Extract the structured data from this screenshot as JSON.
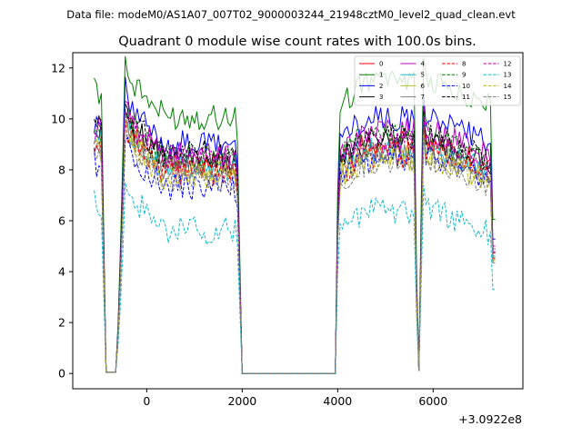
{
  "chart_data": {
    "type": "line",
    "suptitle": "Data file: modeM0/AS1A07_007T02_9000003244_21948cztM0_level2_quad_clean.evt",
    "title": "Quadrant 0 module wise count rates with 100.0s bins.",
    "xlabel": "",
    "ylabel": "",
    "x_offset_label": "+3.0922e8",
    "xlim": [
      -1550,
      7880
    ],
    "ylim": [
      -0.6,
      12.6
    ],
    "xticks": [
      0,
      2000,
      4000,
      6000
    ],
    "yticks": [
      0,
      2,
      4,
      6,
      8,
      10,
      12
    ],
    "xtick_labels": [
      "0",
      "2000",
      "4000",
      "6000"
    ],
    "ytick_labels": [
      "0",
      "2",
      "4",
      "6",
      "8",
      "10",
      "12"
    ],
    "grid": false,
    "legend_position": "top-right",
    "legend_columns": 4,
    "time_segments": [
      {
        "start": -1100,
        "end": 1950,
        "step": 50
      },
      {
        "start": 4000,
        "end": 7300,
        "step": 50
      }
    ],
    "gaps": [
      {
        "start": -850,
        "end": -650,
        "value": 0.05
      },
      {
        "start": 2000,
        "end": 3950,
        "value": 0.0
      },
      {
        "start": 5700,
        "end": 5700,
        "value": 0.1
      }
    ],
    "series": [
      {
        "name": "0",
        "color": "#ff0000",
        "dash": "solid",
        "level": 8.3,
        "level2": 8.6
      },
      {
        "name": "1",
        "color": "#008000",
        "dash": "solid",
        "level": 10.1,
        "level2": 11.0
      },
      {
        "name": "2",
        "color": "#0000ff",
        "dash": "solid",
        "level": 9.0,
        "level2": 9.6
      },
      {
        "name": "3",
        "color": "#000000",
        "dash": "solid",
        "level": 8.4,
        "level2": 8.7
      },
      {
        "name": "4",
        "color": "#bf00bf",
        "dash": "solid",
        "level": 8.6,
        "level2": 9.1
      },
      {
        "name": "5",
        "color": "#17becf",
        "dash": "solid",
        "level": 8.1,
        "level2": 8.4
      },
      {
        "name": "6",
        "color": "#bcbd22",
        "dash": "solid",
        "level": 7.9,
        "level2": 8.1
      },
      {
        "name": "7",
        "color": "#7f7f7f",
        "dash": "solid",
        "level": 8.0,
        "level2": 8.3
      },
      {
        "name": "8",
        "color": "#ff0000",
        "dash": "dashed",
        "level": 7.9,
        "level2": 8.2
      },
      {
        "name": "9",
        "color": "#008000",
        "dash": "dashed",
        "level": 8.5,
        "level2": 8.9
      },
      {
        "name": "10",
        "color": "#0000ff",
        "dash": "dashed",
        "level": 7.3,
        "level2": 8.0
      },
      {
        "name": "11",
        "color": "#000000",
        "dash": "dashed",
        "level": 8.6,
        "level2": 8.9
      },
      {
        "name": "12",
        "color": "#bf00bf",
        "dash": "dashed",
        "level": 8.4,
        "level2": 8.7
      },
      {
        "name": "13",
        "color": "#17becf",
        "dash": "dashed",
        "level": 5.6,
        "level2": 6.0
      },
      {
        "name": "14",
        "color": "#bcbd22",
        "dash": "dashed",
        "level": 7.7,
        "level2": 8.0
      },
      {
        "name": "15",
        "color": "#7f7f7f",
        "dash": "dashed",
        "level": 7.6,
        "level2": 7.9
      }
    ]
  }
}
